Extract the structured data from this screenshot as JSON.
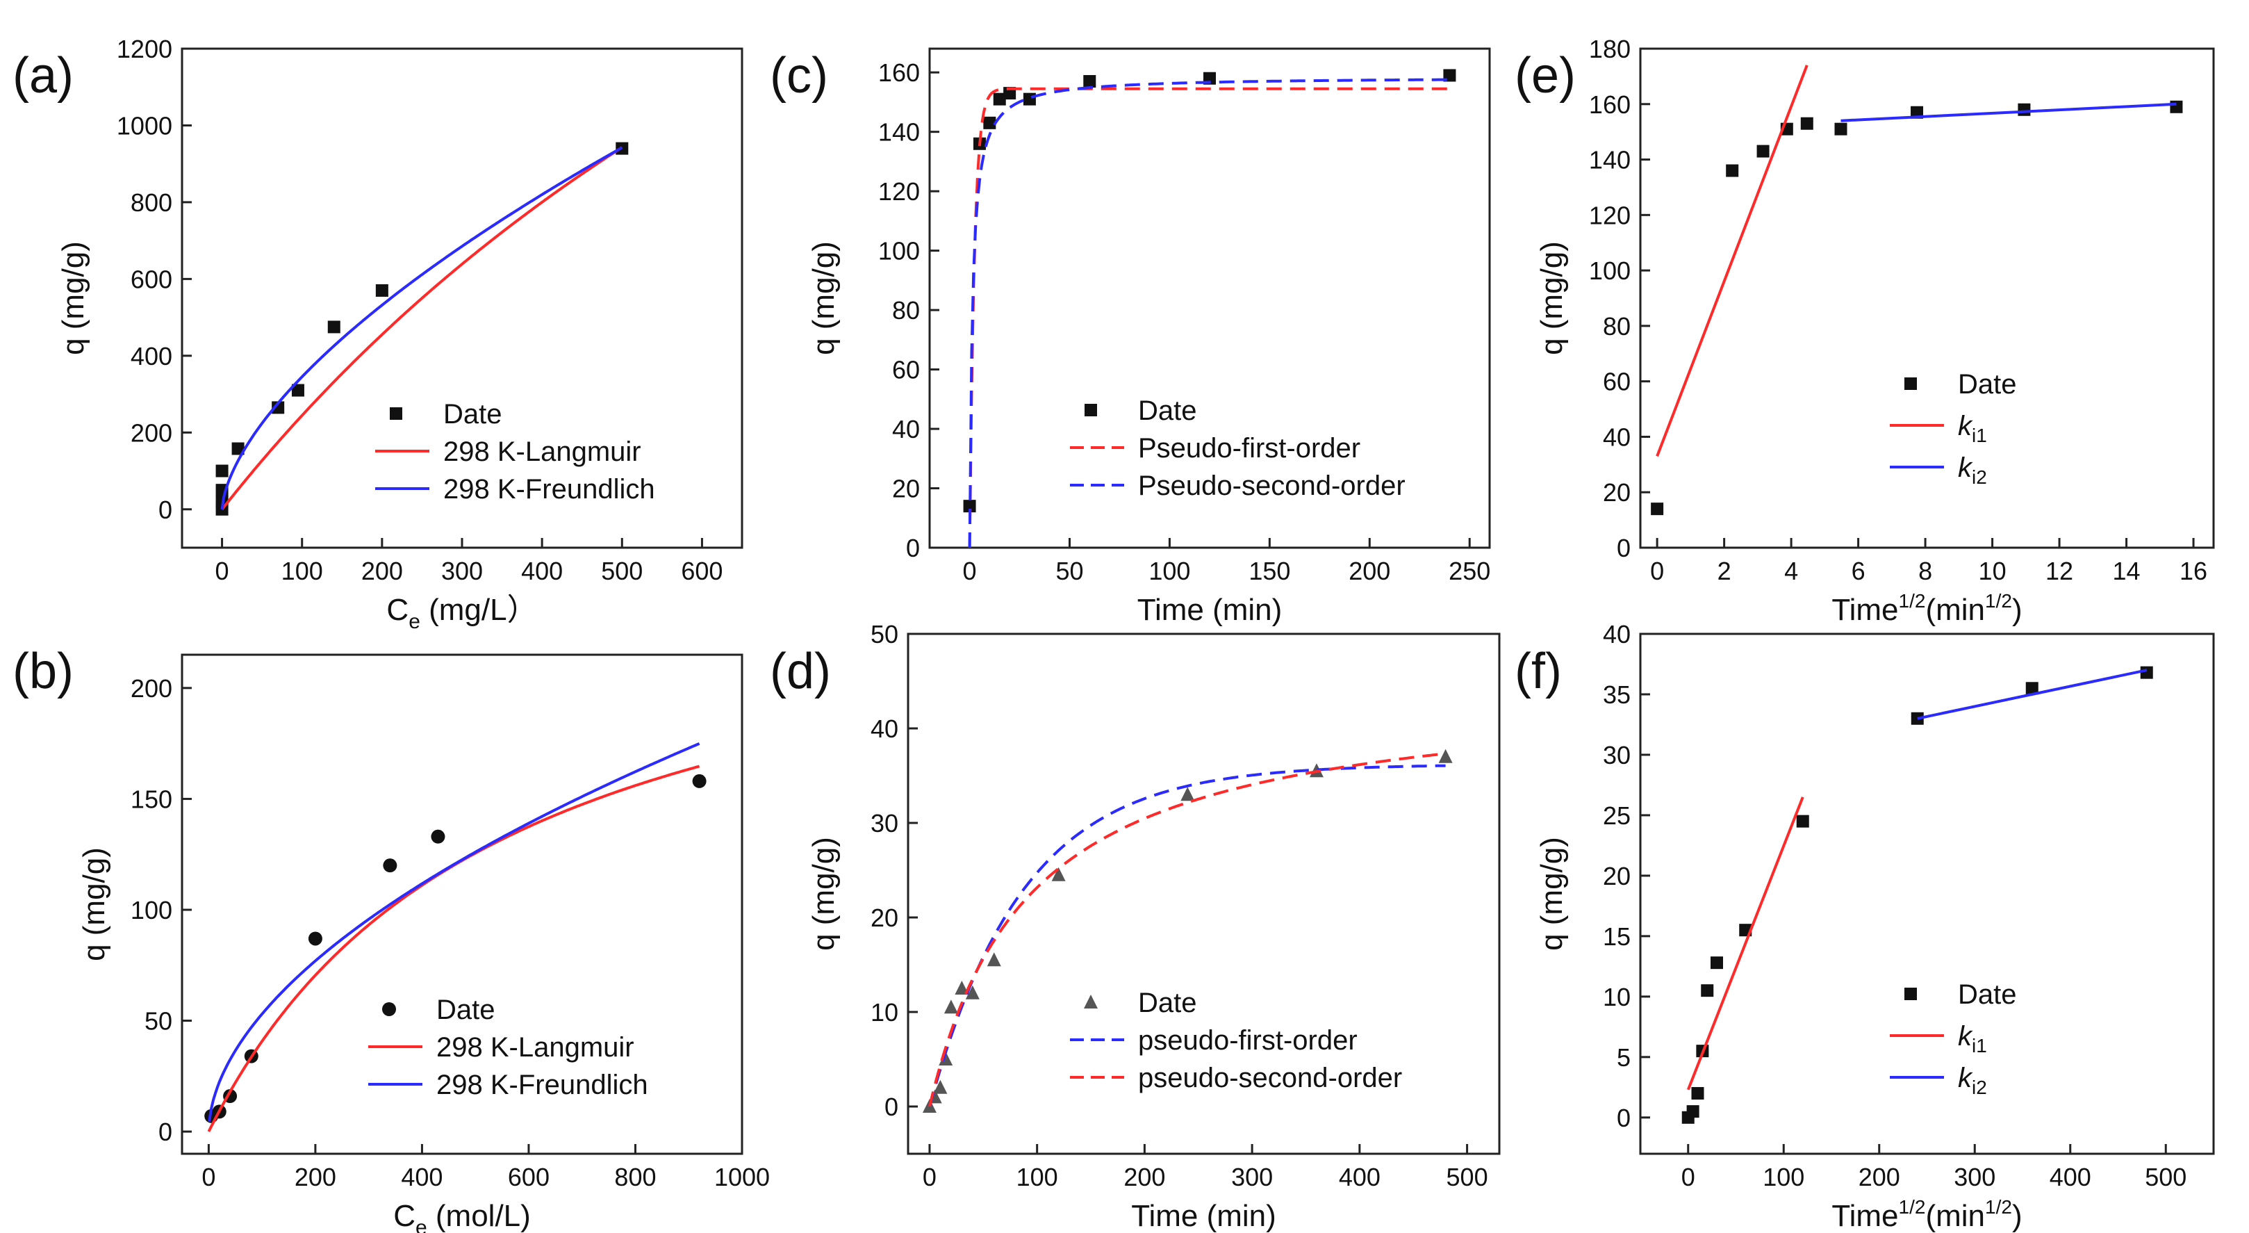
{
  "colors": {
    "red": "#ff2a2a",
    "blue": "#2b2bff",
    "black": "#111111",
    "axis": "#222222"
  },
  "chart_data": [
    {
      "panel": "(a)",
      "type": "scatter",
      "xlabel": "C",
      "xlabel_sub": "e",
      "xlabel_tail": " (mg/L）",
      "ylabel": "q (mg/g)",
      "xlim": [
        -50,
        650
      ],
      "ylim": [
        -100,
        1200
      ],
      "xticks": [
        0,
        100,
        200,
        300,
        400,
        500,
        600
      ],
      "yticks": [
        0,
        200,
        400,
        600,
        800,
        1000,
        1200
      ],
      "series": [
        {
          "name": "Date",
          "kind": "points",
          "marker": "square",
          "color": "black",
          "x": [
            0,
            0,
            0,
            0,
            20,
            70,
            95,
            140,
            200,
            500
          ],
          "y": [
            100,
            50,
            20,
            0,
            158,
            265,
            310,
            475,
            570,
            940
          ]
        },
        {
          "name": "298 K-Langmuir",
          "kind": "line",
          "dash": false,
          "color": "red",
          "model": "langmuir",
          "params": {
            "qm": 3300,
            "K": 0.0008
          },
          "x_range": [
            0,
            500
          ]
        },
        {
          "name": "298 K-Freundlich",
          "kind": "line",
          "dash": false,
          "color": "blue",
          "model": "freundlich",
          "params": {
            "K": 19.5,
            "n": 0.624
          },
          "x_range": [
            0,
            500
          ]
        }
      ],
      "legend": [
        {
          "label": "Date",
          "series": 0
        },
        {
          "label": "298 K-Langmuir",
          "series": 1
        },
        {
          "label": "298 K-Freundlich",
          "series": 2
        }
      ]
    },
    {
      "panel": "(b)",
      "type": "scatter",
      "xlabel": "C",
      "xlabel_sub": "e",
      "xlabel_tail": " (mol/L)",
      "ylabel": "q (mg/g)",
      "xlim": [
        -50,
        1000
      ],
      "ylim": [
        -10,
        215
      ],
      "xticks": [
        0,
        200,
        400,
        600,
        800,
        1000
      ],
      "yticks": [
        0,
        50,
        100,
        150,
        200
      ],
      "series": [
        {
          "name": "Date",
          "kind": "points",
          "marker": "circle",
          "color": "black",
          "x": [
            5,
            20,
            40,
            80,
            200,
            340,
            430,
            920
          ],
          "y": [
            7,
            9,
            16,
            34,
            87,
            120,
            133,
            158
          ]
        },
        {
          "name": "298 K-Langmuir",
          "kind": "line",
          "dash": false,
          "color": "red",
          "model": "langmuir",
          "params": {
            "qm": 262,
            "K": 0.00184
          },
          "x_range": [
            0,
            920
          ]
        },
        {
          "name": "298 K-Freundlich",
          "kind": "line",
          "dash": false,
          "color": "blue",
          "model": "freundlich",
          "params": {
            "K": 4.45,
            "n": 0.538
          },
          "x_range": [
            1,
            920
          ]
        }
      ],
      "legend": [
        {
          "label": "Date",
          "series": 0
        },
        {
          "label": "298 K-Langmuir",
          "series": 1
        },
        {
          "label": "298 K-Freundlich",
          "series": 2
        }
      ]
    },
    {
      "panel": "(c)",
      "type": "scatter",
      "xlabel": "Time (min)",
      "ylabel": "q (mg/g)",
      "xlim": [
        -20,
        260
      ],
      "ylim": [
        0,
        168
      ],
      "xticks": [
        0,
        50,
        100,
        150,
        200,
        250
      ],
      "yticks": [
        0,
        20,
        40,
        60,
        80,
        100,
        120,
        140,
        160
      ],
      "series": [
        {
          "name": "Date",
          "kind": "points",
          "marker": "square",
          "color": "black",
          "x": [
            0,
            5,
            10,
            15,
            20,
            30,
            60,
            120,
            240
          ],
          "y": [
            14,
            136,
            143,
            151,
            153,
            151,
            157,
            158,
            159
          ]
        },
        {
          "name": "Pseudo-first-order",
          "kind": "line",
          "dash": true,
          "color": "red",
          "model": "pfo",
          "params": {
            "qe": 154.5,
            "k": 0.42
          },
          "x_range": [
            0,
            240
          ]
        },
        {
          "name": "Pseudo-second-order",
          "kind": "line",
          "dash": true,
          "color": "blue",
          "model": "pso",
          "params": {
            "qe": 158.5,
            "k": 0.0045
          },
          "x_range": [
            0,
            240
          ]
        }
      ],
      "legend": [
        {
          "label": "Date",
          "series": 0
        },
        {
          "label": "Pseudo-first-order",
          "series": 1
        },
        {
          "label": "Pseudo-second-order",
          "series": 2
        }
      ]
    },
    {
      "panel": "(d)",
      "type": "scatter",
      "xlabel": "Time (min)",
      "ylabel": "q (mg/g)",
      "xlim": [
        -20,
        530
      ],
      "ylim": [
        -5,
        50
      ],
      "xticks": [
        0,
        100,
        200,
        300,
        400,
        500
      ],
      "yticks": [
        0,
        10,
        20,
        30,
        40,
        50
      ],
      "series": [
        {
          "name": "Date",
          "kind": "points",
          "marker": "triangle",
          "color": "gray",
          "x": [
            0,
            5,
            10,
            15,
            20,
            30,
            40,
            60,
            120,
            240,
            360,
            480
          ],
          "y": [
            0,
            1,
            2,
            5,
            10.5,
            12.5,
            12,
            15.5,
            24.5,
            33,
            35.5,
            37
          ]
        },
        {
          "name": "pseudo-first-order",
          "kind": "line",
          "dash": true,
          "color": "blue",
          "model": "pfo",
          "params": {
            "qe": 36.2,
            "k": 0.0115
          },
          "x_range": [
            0,
            480
          ]
        },
        {
          "name": "pseudo-second-order",
          "kind": "line",
          "dash": true,
          "color": "red",
          "model": "pso",
          "params": {
            "qe": 44.5,
            "k": 0.000244
          },
          "x_range": [
            0,
            480
          ]
        }
      ],
      "legend": [
        {
          "label": "Date",
          "series": 0
        },
        {
          "label": "pseudo-first-order",
          "series": 1
        },
        {
          "label": "pseudo-second-order",
          "series": 2
        }
      ]
    },
    {
      "panel": "(e)",
      "type": "scatter",
      "xlabel": "Time",
      "xlabel_sup": "1/2",
      "xlabel_tail": "(min",
      "xlabel_sup2": "1/2",
      "xlabel_end": ")",
      "ylabel": "q (mg/g)",
      "xlim": [
        -0.5,
        16.6
      ],
      "ylim": [
        0,
        180
      ],
      "xticks": [
        0,
        2,
        4,
        6,
        8,
        10,
        12,
        14,
        16
      ],
      "yticks": [
        0,
        20,
        40,
        60,
        80,
        100,
        120,
        140,
        160,
        180
      ],
      "series": [
        {
          "name": "Date",
          "kind": "points",
          "marker": "square",
          "color": "black",
          "x": [
            0,
            2.24,
            3.16,
            3.87,
            4.47,
            5.48,
            7.75,
            10.95,
            15.49
          ],
          "y": [
            14,
            136,
            143,
            151,
            153,
            151,
            157,
            158,
            159
          ]
        },
        {
          "name": "k_i1",
          "kind": "line",
          "dash": false,
          "color": "red",
          "model": "linear",
          "x": [
            0,
            4.47
          ],
          "y": [
            33,
            174
          ]
        },
        {
          "name": "k_i2",
          "kind": "line",
          "dash": false,
          "color": "blue",
          "model": "linear",
          "x": [
            5.48,
            15.49
          ],
          "y": [
            154,
            160
          ]
        }
      ],
      "legend": [
        {
          "label": "Date",
          "series": 0
        },
        {
          "label": "k",
          "sub": "i1",
          "series": 1
        },
        {
          "label": "k",
          "sub": "i2",
          "series": 2
        }
      ]
    },
    {
      "panel": "(f)",
      "type": "scatter",
      "xlabel": "Time",
      "xlabel_sup": "1/2",
      "xlabel_tail": "(min",
      "xlabel_sup2": "1/2",
      "xlabel_end": ")",
      "ylabel": "q (mg/g)",
      "xlim": [
        -50,
        550
      ],
      "ylim": [
        -3,
        40
      ],
      "xticks": [
        0,
        100,
        200,
        300,
        400,
        500
      ],
      "yticks": [
        0,
        5,
        10,
        15,
        20,
        25,
        30,
        35,
        40
      ],
      "series": [
        {
          "name": "Date",
          "kind": "points",
          "marker": "square",
          "color": "black",
          "x": [
            0,
            5,
            10,
            15,
            20,
            30,
            60,
            120,
            240,
            360,
            480
          ],
          "y": [
            0,
            0.5,
            2,
            5.5,
            10.5,
            12.8,
            15.5,
            24.5,
            33,
            35.5,
            36.8
          ]
        },
        {
          "name": "k_i1",
          "kind": "line",
          "dash": false,
          "color": "red",
          "model": "linear",
          "x": [
            0,
            120
          ],
          "y": [
            2.3,
            26.5
          ]
        },
        {
          "name": "k_i2",
          "kind": "line",
          "dash": false,
          "color": "blue",
          "model": "linear",
          "x": [
            240,
            480
          ],
          "y": [
            33,
            37
          ]
        }
      ],
      "legend": [
        {
          "label": "Date",
          "series": 0
        },
        {
          "label": "k",
          "sub": "i1",
          "series": 1
        },
        {
          "label": "k",
          "sub": "i2",
          "series": 2
        }
      ]
    }
  ]
}
